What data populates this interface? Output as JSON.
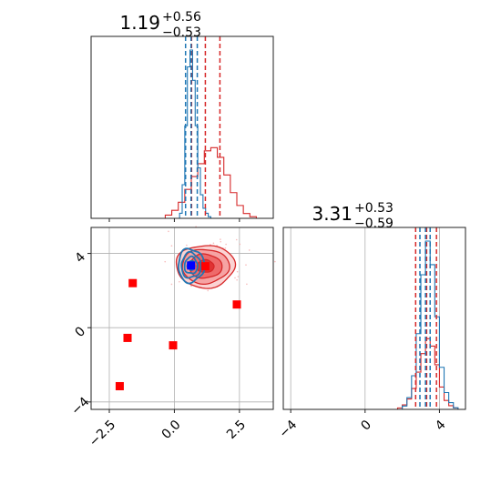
{
  "chart_data": {
    "type": "corner",
    "colors": {
      "red": "#d62728",
      "blue": "#1f77b4",
      "marker_red": "#ff0000",
      "marker_blue": "#0000ff",
      "grid": "#b0b0b0"
    },
    "panels": [
      {
        "id": "hist-x",
        "type": "histogram",
        "title": {
          "value": "1.19",
          "plus": "+0.56",
          "minus": "−0.53"
        },
        "xlim": [
          -3.2,
          3.8
        ],
        "red_quantiles": [
          0.66,
          1.19,
          1.75
        ],
        "blue_quantiles": [
          0.43,
          0.64,
          0.88
        ],
        "red_hist": {
          "edges": [
            -0.35,
            -0.1,
            0.15,
            0.4,
            0.65,
            0.9,
            1.15,
            1.4,
            1.65,
            1.9,
            2.15,
            2.4,
            2.65,
            2.9,
            3.15
          ],
          "counts": [
            0.02,
            0.05,
            0.1,
            0.18,
            0.26,
            0.34,
            0.42,
            0.44,
            0.38,
            0.27,
            0.16,
            0.08,
            0.03,
            0.01
          ]
        },
        "blue_hist": {
          "edges": [
            0.2,
            0.3,
            0.4,
            0.5,
            0.6,
            0.7,
            0.8,
            0.9,
            1.0,
            1.1,
            1.2,
            1.3,
            1.4
          ],
          "counts": [
            0.03,
            0.2,
            0.55,
            0.9,
            1.0,
            0.82,
            0.55,
            0.3,
            0.14,
            0.06,
            0.03,
            0.01
          ]
        }
      },
      {
        "id": "scatter-2d",
        "type": "contour",
        "xlim": [
          -3.2,
          3.8
        ],
        "ylim": [
          -4.4,
          5.4
        ],
        "x_ticks": [
          -2.5,
          0.0,
          2.5
        ],
        "x_tick_labels": [
          "−2.5",
          "0.0",
          "2.5"
        ],
        "y_ticks": [
          -4,
          0,
          4
        ],
        "y_tick_labels": [
          "−4",
          "0",
          "4"
        ],
        "red_center": [
          1.19,
          3.31
        ],
        "red_sigma": [
          0.55,
          0.56
        ],
        "blue_center": [
          0.64,
          3.35
        ],
        "blue_sigma": [
          0.25,
          0.45
        ],
        "blue_point": [
          0.64,
          3.35
        ],
        "red_points": [
          [
            1.19,
            3.31
          ],
          [
            -1.6,
            2.4
          ],
          [
            -1.8,
            -0.55
          ],
          [
            -0.05,
            -0.95
          ],
          [
            -2.1,
            -3.15
          ],
          [
            2.4,
            1.25
          ]
        ]
      },
      {
        "id": "hist-y",
        "type": "histogram",
        "title": {
          "value": "3.31",
          "plus": "+0.53",
          "minus": "−0.59"
        },
        "xlim": [
          -4.4,
          5.4
        ],
        "x_ticks": [
          -4,
          0,
          4
        ],
        "x_tick_labels": [
          "−4",
          "0",
          "4"
        ],
        "red_quantiles": [
          2.72,
          3.31,
          3.84
        ],
        "blue_quantiles": [
          2.95,
          3.25,
          3.5
        ],
        "red_hist": {
          "edges": [
            1.75,
            2.0,
            2.25,
            2.5,
            2.75,
            3.0,
            3.25,
            3.5,
            3.75,
            4.0,
            4.25,
            4.5,
            4.75,
            5.0
          ],
          "counts": [
            0.02,
            0.06,
            0.14,
            0.28,
            0.5,
            0.75,
            0.95,
            0.85,
            0.6,
            0.3,
            0.12,
            0.05,
            0.02
          ]
        },
        "blue_hist": {
          "edges": [
            2.0,
            2.25,
            2.5,
            2.75,
            3.0,
            3.25,
            3.5,
            3.75,
            4.0,
            4.25,
            4.5,
            4.75,
            5.0
          ],
          "counts": [
            0.02,
            0.07,
            0.2,
            0.45,
            0.8,
            1.0,
            0.86,
            0.55,
            0.25,
            0.1,
            0.04,
            0.01
          ]
        }
      }
    ]
  }
}
